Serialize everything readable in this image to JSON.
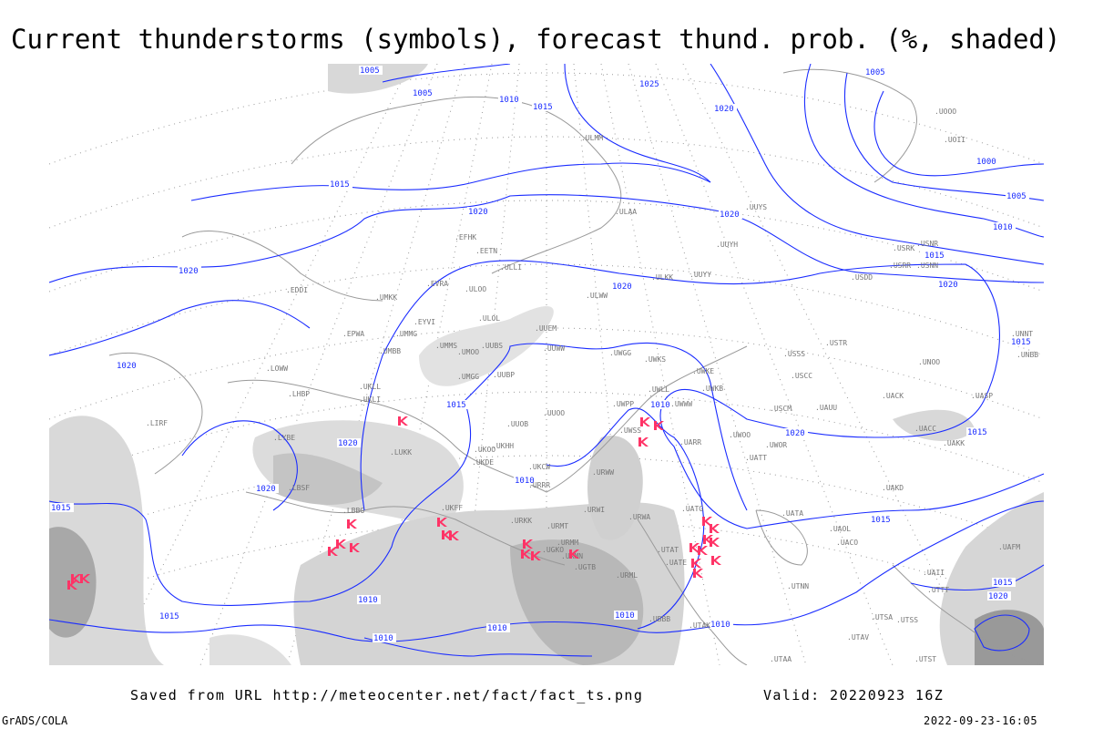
{
  "title": "Current thunderstorms (symbols), forecast thund. prob. (%, shaded)",
  "footer": {
    "saved_from": "Saved from URL http://meteocenter.net/fact/fact_ts.png",
    "valid": "Valid: 20220923 16Z",
    "software": "GrADS/COLA",
    "timestamp": "2022-09-23-16:05"
  },
  "map": {
    "colors": {
      "isobar": "#1a2cff",
      "storm_symbol": "#ff3366",
      "shading": "#c8c8c8",
      "border": "#999999"
    },
    "isobar_labels": [
      "1005",
      "1005",
      "1010",
      "1015",
      "1025",
      "1020",
      "1005",
      "1000",
      "1005",
      "1010",
      "1015",
      "1020",
      "1020",
      "1015",
      "1020",
      "1020",
      "1020",
      "1020",
      "1015",
      "1010",
      "1015",
      "1020",
      "1020",
      "1015",
      "1020",
      "1015",
      "1010",
      "1015",
      "1010",
      "1015",
      "1010",
      "1010",
      "1010",
      "1015",
      "1020",
      "1010"
    ],
    "stations": [
      "EDDI",
      "UMKK",
      "EVRA",
      "ULOO",
      "ULOL",
      "UUEM",
      "ULWW",
      "ULKK",
      "UUYY",
      "EPWA",
      "EYVI",
      "UMMG",
      "UMBB",
      "UMMS",
      "UMOO",
      "UUBS",
      "UUWW",
      "UWGG",
      "UWKS",
      "UWKE",
      "UWKB",
      "UMGG",
      "UUBP",
      "UKLL",
      "UKLI",
      "LHBP",
      "LOWW",
      "UWPP",
      "UWLL",
      "UWWW",
      "UUOO",
      "UUOB",
      "UWSS",
      "UARR",
      "UKHH",
      "UKOO",
      "UKDE",
      "UKCW",
      "URRR",
      "URWW",
      "LUKK",
      "LYBE",
      "LBSF",
      "ULAA",
      "UUYS",
      "UUYH",
      "ULMM",
      "ULLI",
      "EETN",
      "EFHK",
      "USSS",
      "USTR",
      "USCC",
      "UNOO",
      "UASP",
      "UACK",
      "UAUU",
      "USCM",
      "UWOO",
      "UWOR",
      "UATT",
      "UACC",
      "UAKK",
      "UAKD",
      "UATA",
      "UAOL",
      "UACO",
      "UNNT",
      "UNBB",
      "UOOO",
      "UOII",
      "USRR",
      "USNR",
      "USRK",
      "USNN",
      "USDD",
      "UAII",
      "UAFM",
      "UTTT",
      "UTSS",
      "UTSA",
      "UTAV",
      "UTAA",
      "UTAK",
      "UTNN",
      "UTST",
      "UBBB",
      "UGTB",
      "UGKO",
      "UTAT",
      "UATE",
      "UATG",
      "URWA",
      "URWI",
      "URMT",
      "URMM",
      "URMN",
      "URML",
      "URKK",
      "UKFF",
      "LBBG",
      "LIRF"
    ]
  }
}
